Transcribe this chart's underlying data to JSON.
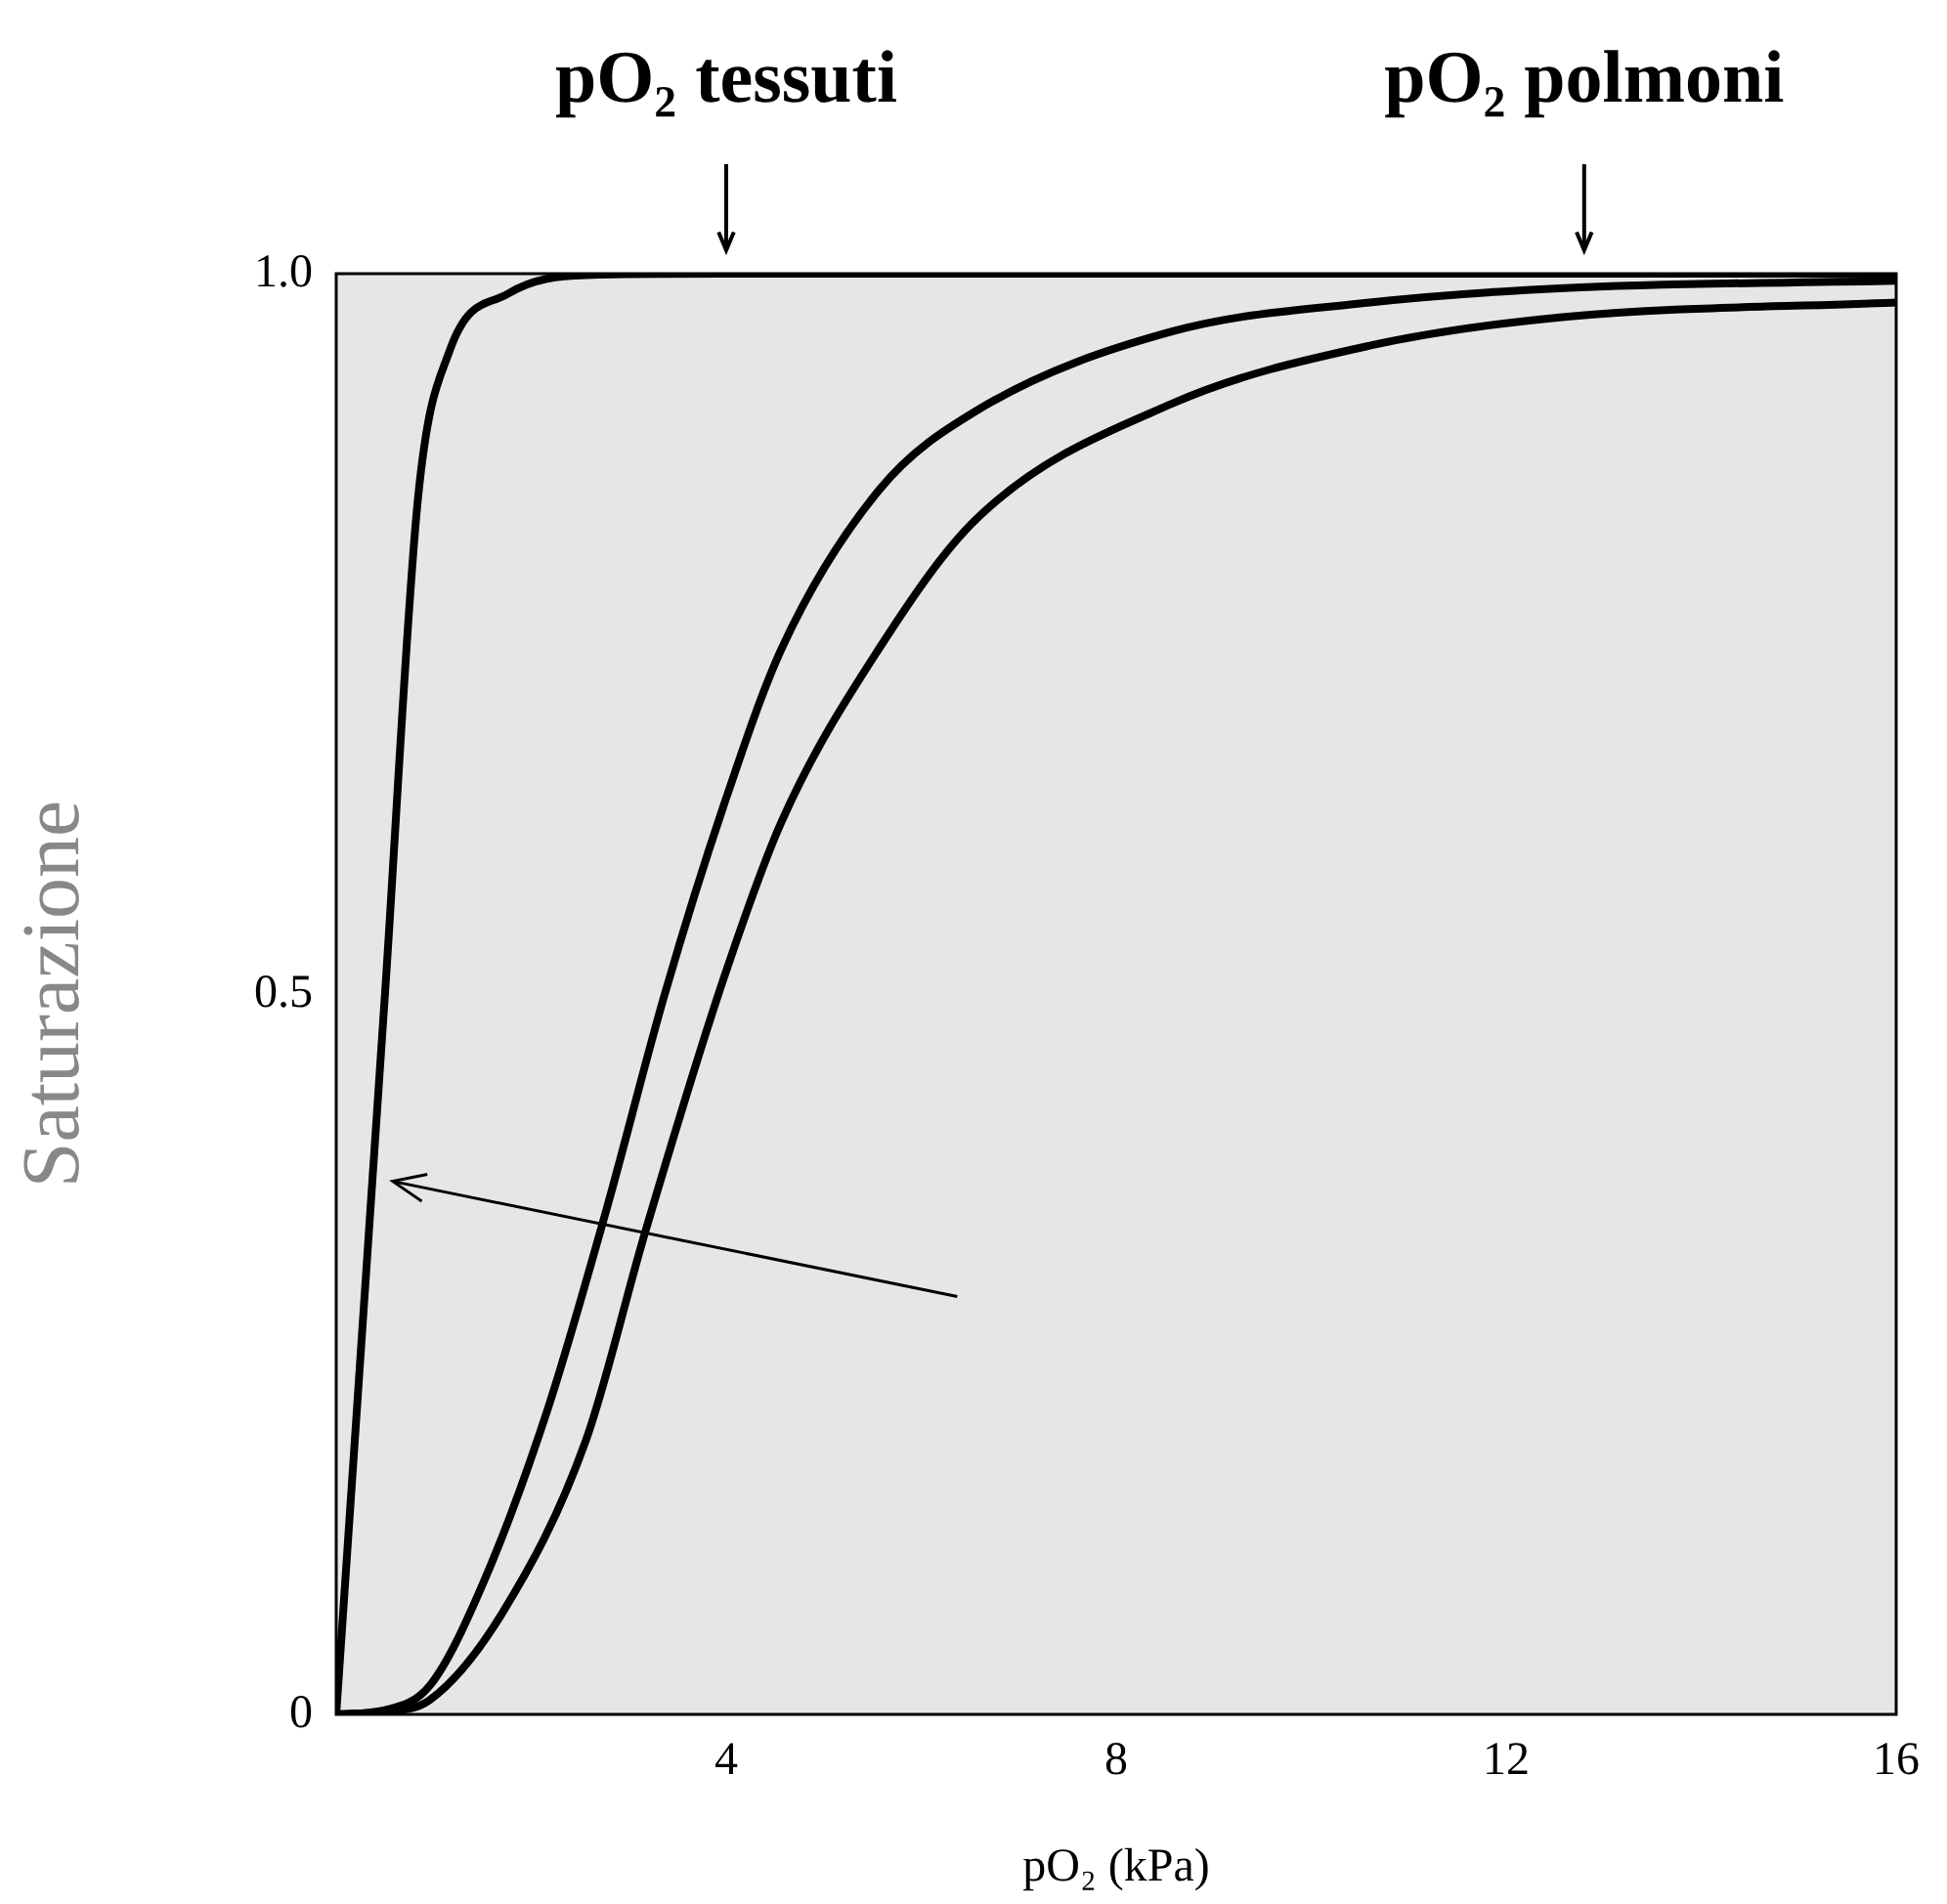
{
  "chart_data": {
    "type": "line",
    "xlabel": "pO₂ (kPa)",
    "ylabel": "Saturazione",
    "xlim": [
      0,
      16
    ],
    "ylim": [
      0,
      1
    ],
    "xticks": [
      4,
      8,
      12,
      16
    ],
    "yticks": [
      0,
      0.5,
      {
        "value": 1,
        "label": "1.0"
      }
    ],
    "marker": "none",
    "line_style": "solid",
    "legend": false,
    "series": [
      {
        "color": "#000000",
        "x": [
          0,
          0.5,
          0.84,
          1.16,
          1.76,
          2.56,
          4,
          8,
          12,
          16
        ],
        "values": [
          0,
          0.5,
          0.845,
          0.946,
          0.986,
          0.999,
          1,
          1,
          1,
          1
        ]
      },
      {
        "color": "#000000",
        "x": [
          0,
          0.5,
          0.96,
          1.5,
          2.16,
          2.77,
          3.37,
          3.97,
          4.57,
          5.57,
          6.57,
          8.58,
          10.6,
          12.6,
          16
        ],
        "values": [
          0,
          0.003,
          0.02,
          0.09,
          0.21,
          0.35,
          0.5,
          0.63,
          0.74,
          0.85,
          0.905,
          0.96,
          0.98,
          0.99,
          0.995
        ]
      },
      {
        "color": "#000000",
        "x": [
          0,
          0.5,
          0.96,
          1.7,
          2.56,
          3.17,
          3.97,
          4.57,
          5.57,
          6.57,
          8.58,
          10.6,
          12.6,
          16
        ],
        "values": [
          0,
          0.002,
          0.01,
          0.07,
          0.19,
          0.335,
          0.51,
          0.62,
          0.74,
          0.83,
          0.91,
          0.95,
          0.97,
          0.98
        ]
      }
    ],
    "annotations": [
      {
        "text": "pO₂ tessuti",
        "x": 4,
        "y": 1
      },
      {
        "text": "pO₂ polmoni",
        "x": 12.8,
        "y": 1
      }
    ]
  }
}
